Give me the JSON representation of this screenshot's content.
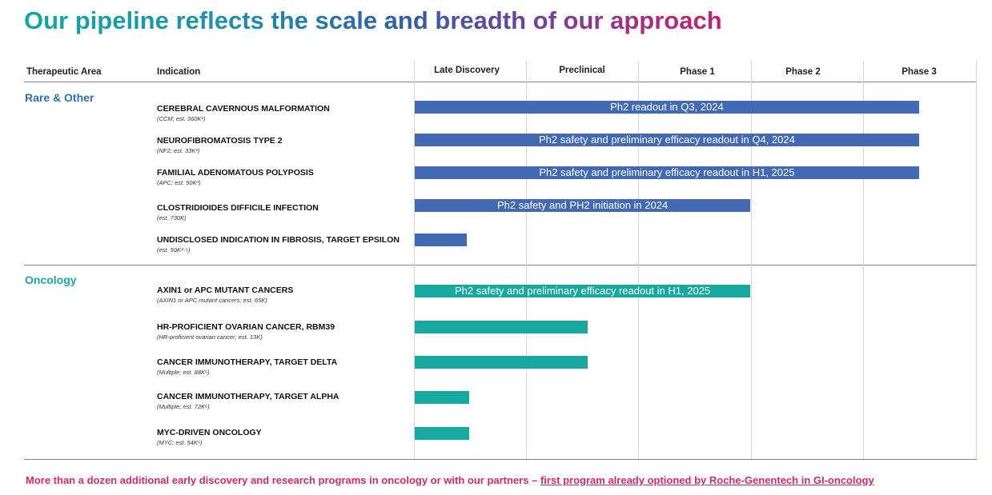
{
  "title": "Our pipeline reflects the scale and breadth of our approach",
  "headers": {
    "area": "Therapeutic Area",
    "indication": "Indication",
    "phases": [
      "Late Discovery",
      "Preclinical",
      "Phase 1",
      "Phase 2",
      "Phase 3"
    ]
  },
  "colors": {
    "rare": "#4169b4",
    "oncology": "#17a8a0",
    "footer": "#d3286c"
  },
  "sections": [
    {
      "name": "Rare & Other",
      "rows": [
        {
          "name": "CEREBRAL CAVERNOUS MALFORMATION",
          "sub": "(CCM; est. 360K¹)",
          "bar": "Ph2 readout in Q3, 2024",
          "progress_phase": 4.5
        },
        {
          "name": "NEUROFIBROMATOSIS TYPE 2",
          "sub": "(NF2; est. 33K²)",
          "bar": "Ph2 safety and preliminary efficacy readout in Q4, 2024",
          "progress_phase": 4.5
        },
        {
          "name": "FAMILIAL ADENOMATOUS POLYPOSIS",
          "sub": "(APC; est. 50K³)",
          "bar": "Ph2 safety and preliminary efficacy readout in H1, 2025",
          "progress_phase": 4.5
        },
        {
          "name": "CLOSTRIDIOIDES DIFFICILE INFECTION",
          "sub": "(est. 730K)",
          "bar": "Ph2 safety and PH2 initiation in 2024",
          "progress_phase": 3.0
        },
        {
          "name": "UNDISCLOSED INDICATION IN FIBROSIS, TARGET EPSILON",
          "sub": "(est. 50K⁴·⁵)",
          "bar": "",
          "progress_phase": 0.48
        }
      ]
    },
    {
      "name": "Oncology",
      "rows": [
        {
          "name": "AXIN1 or APC MUTANT CANCERS",
          "sub": "(AXIN1 or APC mutant cancers; est. 65K)",
          "bar": "Ph2 safety and preliminary efficacy readout in H1, 2025",
          "progress_phase": 3.0
        },
        {
          "name": "HR-PROFICIENT OVARIAN CANCER, RBM39",
          "sub": "(HR-proficient ovarian cancer; est. 13K)",
          "bar": "",
          "progress_phase": 1.55
        },
        {
          "name": "CANCER IMMUNOTHERAPY, TARGET DELTA",
          "sub": "(Multiple; est. 88K⁶)",
          "bar": "",
          "progress_phase": 1.55
        },
        {
          "name": "CANCER IMMUNOTHERAPY, TARGET ALPHA",
          "sub": "(Multiple; est. 72K⁶)",
          "bar": "",
          "progress_phase": 0.5
        },
        {
          "name": "MYC-DRIVEN ONCOLOGY",
          "sub": "(MYC; est. 54K⁶)",
          "bar": "",
          "progress_phase": 0.5
        }
      ]
    }
  ],
  "footer": {
    "text": "More than a dozen additional early discovery and research programs in oncology or with our partners – ",
    "link": "first program already optioned by Roche-Genentech in GI-oncology"
  }
}
